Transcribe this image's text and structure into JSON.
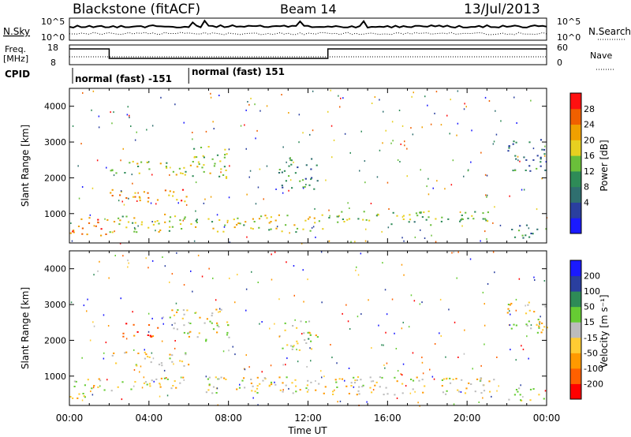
{
  "header": {
    "title": "Blackstone (fitACF)",
    "beam": "Beam 14",
    "date": "13/Jul/2013"
  },
  "noise_panel": {
    "left_label": "N.Sky",
    "right_label": "N.Search",
    "left_ticks": [
      "10^5",
      "10^0"
    ],
    "right_ticks": [
      "10^5",
      "10^0"
    ]
  },
  "freq_panel": {
    "left_label_1": "Freq.",
    "left_label_2": "[MHz]",
    "left_ticks": [
      "18",
      "8"
    ],
    "right_label": "Nave",
    "right_ticks": [
      "60",
      "0"
    ],
    "freq_switch_hours": [
      2.0,
      13.0
    ]
  },
  "cpid": {
    "label": "CPID",
    "segments": [
      {
        "text": "normal (fast) -151",
        "start_hour": 0.0
      },
      {
        "text": "normal (fast) 151",
        "start_hour": 6.0
      }
    ]
  },
  "chart_data": [
    {
      "type": "heatmap",
      "name": "power",
      "ylabel": "Slant Range [km]",
      "xlabel": "Time UT",
      "ylim": [
        180,
        4500
      ],
      "xlim": [
        0,
        24
      ],
      "yticks": [
        "1000",
        "2000",
        "3000",
        "4000"
      ],
      "xticks": [
        "00:00",
        "04:00",
        "08:00",
        "12:00",
        "16:00",
        "20:00",
        "00:00"
      ],
      "colorbar": {
        "label": "Power [dB]",
        "ticks": [
          "28",
          "24",
          "20",
          "16",
          "12",
          "8",
          "4"
        ],
        "colors": [
          "#1a1aff",
          "#2a3f9f",
          "#2f6f6f",
          "#2e8b57",
          "#6abf3a",
          "#e8d020",
          "#f0a000",
          "#f06000",
          "#ff1010"
        ]
      },
      "scatter_regions": [
        {
          "t0": 0.0,
          "t1": 2.0,
          "r0": 400,
          "r1": 950,
          "level": 0.85
        },
        {
          "t0": 2.0,
          "t1": 6.0,
          "r0": 1300,
          "r1": 1700,
          "level": 0.75
        },
        {
          "t0": 2.0,
          "t1": 6.5,
          "r0": 2100,
          "r1": 2500,
          "level": 0.55
        },
        {
          "t0": 6.0,
          "t1": 8.0,
          "r0": 2000,
          "r1": 2900,
          "level": 0.5
        },
        {
          "t0": 2.0,
          "t1": 13.0,
          "r0": 500,
          "r1": 1000,
          "level": 0.6
        },
        {
          "t0": 13.0,
          "t1": 21.5,
          "r0": 700,
          "r1": 1100,
          "level": 0.5
        },
        {
          "t0": 10.5,
          "t1": 12.5,
          "r0": 1700,
          "r1": 2600,
          "level": 0.35
        },
        {
          "t0": 22.0,
          "t1": 24.0,
          "r0": 2200,
          "r1": 3100,
          "level": 0.3
        },
        {
          "t0": 22.0,
          "t1": 24.0,
          "r0": 300,
          "r1": 700,
          "level": 0.35
        }
      ]
    },
    {
      "type": "heatmap",
      "name": "velocity",
      "ylabel": "Slant Range [km]",
      "xlabel": "Time UT",
      "ylim": [
        180,
        4500
      ],
      "xlim": [
        0,
        24
      ],
      "yticks": [
        "1000",
        "2000",
        "3000",
        "4000"
      ],
      "xticks": [
        "00:00",
        "04:00",
        "08:00",
        "12:00",
        "16:00",
        "20:00",
        "00:00"
      ],
      "colorbar": {
        "label": "Velocity [m s⁻¹]",
        "ticks": [
          "200",
          "100",
          "50",
          "15",
          "-15",
          "-50",
          "-100",
          "-200"
        ],
        "colors": [
          "#ff0000",
          "#ff6000",
          "#ff9900",
          "#ffcc33",
          "#bcbcbc",
          "#66cc33",
          "#2e8b57",
          "#2a3f9f",
          "#1a1aff"
        ]
      },
      "scatter_regions": [
        {
          "t0": 0.0,
          "t1": 2.0,
          "r0": 400,
          "r1": 950,
          "level": 0.45
        },
        {
          "t0": 2.0,
          "t1": 6.0,
          "r0": 1300,
          "r1": 1700,
          "level": 0.45
        },
        {
          "t0": 2.5,
          "t1": 4.5,
          "r0": 2100,
          "r1": 2500,
          "level": 0.1
        },
        {
          "t0": 5.0,
          "t1": 8.0,
          "r0": 2000,
          "r1": 2900,
          "level": 0.45
        },
        {
          "t0": 2.0,
          "t1": 21.5,
          "r0": 500,
          "r1": 1000,
          "level": 0.45
        },
        {
          "t0": 10.5,
          "t1": 12.5,
          "r0": 1700,
          "r1": 2600,
          "level": 0.5
        },
        {
          "t0": 22.0,
          "t1": 24.0,
          "r0": 2200,
          "r1": 3100,
          "level": 0.45
        },
        {
          "t0": 22.0,
          "t1": 24.0,
          "r0": 300,
          "r1": 700,
          "level": 0.5
        }
      ]
    }
  ]
}
